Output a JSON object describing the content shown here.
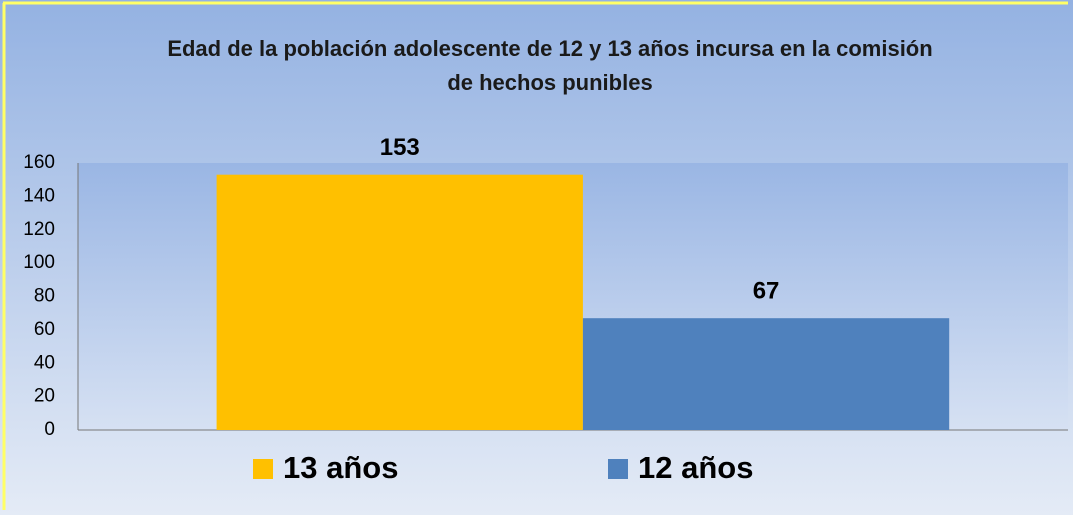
{
  "chart_data": {
    "type": "bar",
    "title": "Edad de la población adolescente de 12 y 13 años incursa en la comisión de hechos punibles",
    "categories": [
      null
    ],
    "series": [
      {
        "name": "13 años",
        "color": "#FFC000",
        "values": [
          153
        ]
      },
      {
        "name": "12 años",
        "color": "#4F81BD",
        "values": [
          67
        ]
      }
    ],
    "ylim": [
      0,
      160
    ],
    "yticks": [
      0,
      20,
      40,
      60,
      80,
      100,
      120,
      140,
      160
    ],
    "grid": false
  }
}
